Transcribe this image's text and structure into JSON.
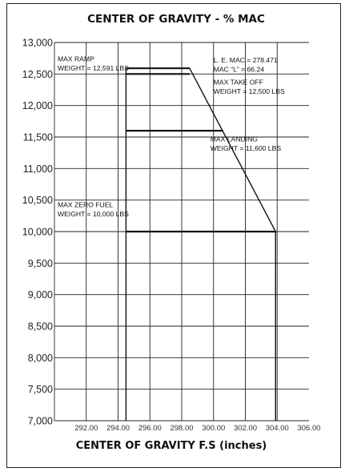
{
  "chart_data": {
    "type": "line",
    "title": "CENTER OF GRAVITY - % MAC",
    "xlabel": "CENTER OF GRAVITY F.S (inches)",
    "ylabel": "",
    "xlim": [
      290.0,
      306.0
    ],
    "ylim": [
      7000,
      13000
    ],
    "grid": true,
    "x_ticks": [
      "292.00",
      "294.00",
      "296.00",
      "298.00",
      "300.00",
      "302.00",
      "304.00",
      "306.00"
    ],
    "x_tick_values": [
      292,
      294,
      296,
      298,
      300,
      302,
      304,
      306
    ],
    "y_ticks": [
      "13,000",
      "12,500",
      "12,000",
      "11,500",
      "11,000",
      "10,500",
      "10,000",
      "9,500",
      "9,000",
      "8,500",
      "8,000",
      "7,500",
      "7,000"
    ],
    "y_tick_values": [
      13000,
      12500,
      12000,
      11500,
      11000,
      10500,
      10000,
      9500,
      9000,
      8500,
      8000,
      7500,
      7000
    ],
    "series": [
      {
        "values_xy": [
          [
            294.5,
            7000
          ],
          [
            294.5,
            12591
          ],
          [
            298.5,
            12591
          ],
          [
            303.9,
            10000
          ],
          [
            303.9,
            7000
          ]
        ]
      }
    ],
    "weight_lines": [
      {
        "y": 12591,
        "x_from": 294.5,
        "x_to": 298.5
      },
      {
        "y": 12500,
        "x_from": 294.5,
        "x_to": 298.5
      },
      {
        "y": 11600,
        "x_from": 294.5,
        "x_to": 300.6
      },
      {
        "y": 10000,
        "x_from": 294.5,
        "x_to": 303.9
      }
    ],
    "annotations": [
      {
        "id": "ramp",
        "lines": [
          "MAX RAMP",
          "WEIGHT = 12,591 LBS"
        ],
        "x": 290.2,
        "y": 12700
      },
      {
        "id": "le-mac",
        "lines": [
          "L. E. MAC = 278.471",
          "MAC “L” = 66.24"
        ],
        "x": 300.0,
        "y": 12680
      },
      {
        "id": "takeoff",
        "lines": [
          "MAX TAKE OFF",
          "WEIGHT = 12,500 LBS"
        ],
        "x": 300.0,
        "y": 12330
      },
      {
        "id": "landing",
        "lines": [
          "MAX LANDING",
          "WEIGHT = 11,600 LBS"
        ],
        "x": 299.8,
        "y": 11430
      },
      {
        "id": "zerofuel",
        "lines": [
          "MAX ZERO FUEL",
          "WEIGHT = 10,000 LBS"
        ],
        "x": 290.2,
        "y": 10390
      }
    ]
  }
}
